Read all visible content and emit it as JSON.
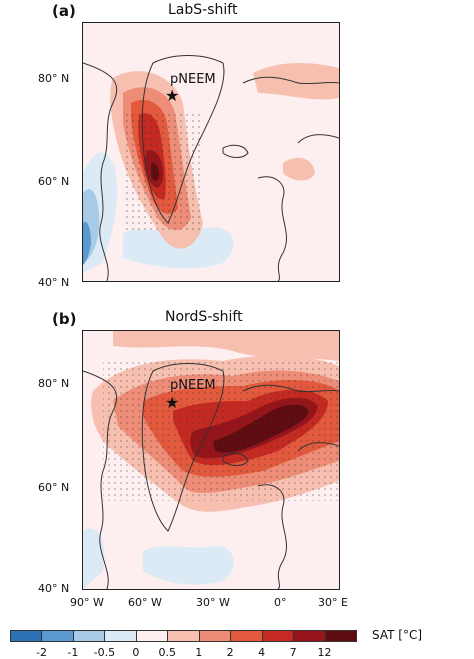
{
  "panels": [
    {
      "letter": "(a)",
      "title": "LabS-shift",
      "site_label": "pNEEM",
      "lat_labels": [
        "80° N",
        "60° N",
        "40° N"
      ]
    },
    {
      "letter": "(b)",
      "title": "NordS-shift",
      "site_label": "pNEEM",
      "lat_labels": [
        "80° N",
        "60° N",
        "40° N"
      ]
    }
  ],
  "lon_labels": [
    "90° W",
    "60° W",
    "30° W",
    "0°",
    "30° E"
  ],
  "legend": {
    "title": "SAT [°C]",
    "ticks": [
      "-2",
      "-1",
      "-0.5",
      "0",
      "0.5",
      "1",
      "2",
      "4",
      "7",
      "12"
    ],
    "colors": [
      "#2c72b6",
      "#5b9ad0",
      "#a7cbe7",
      "#dbeaf5",
      "#fdeef0",
      "#f6bfb0",
      "#ee8d77",
      "#e2593e",
      "#c42a22",
      "#95151a",
      "#5e0c10"
    ]
  },
  "colors": {
    "land_outline": "#333333",
    "neutral": "#fdeef0"
  }
}
